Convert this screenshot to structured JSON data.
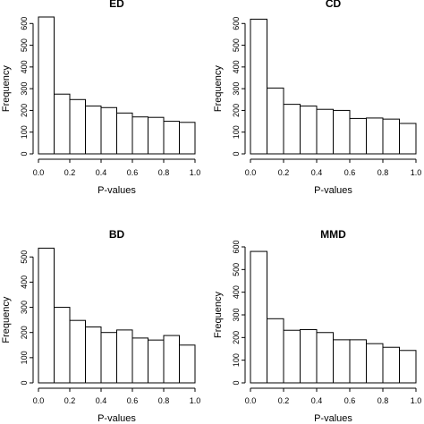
{
  "chart_data": [
    {
      "type": "bar",
      "title": "ED",
      "xlabel": "P-values",
      "ylabel": "Frequency",
      "bin_edges": [
        0.0,
        0.1,
        0.2,
        0.3,
        0.4,
        0.5,
        0.6,
        0.7,
        0.8,
        0.9,
        1.0
      ],
      "values": [
        630,
        275,
        250,
        220,
        213,
        188,
        170,
        168,
        150,
        145
      ],
      "xlim": [
        0,
        1
      ],
      "ylim": [
        0,
        630
      ],
      "xticks": [
        "0.0",
        "0.2",
        "0.4",
        "0.6",
        "0.8",
        "1.0"
      ],
      "yticks": [
        "0",
        "100",
        "200",
        "300",
        "400",
        "500",
        "600"
      ]
    },
    {
      "type": "bar",
      "title": "CD",
      "xlabel": "P-values",
      "ylabel": "Frequency",
      "bin_edges": [
        0.0,
        0.1,
        0.2,
        0.3,
        0.4,
        0.5,
        0.6,
        0.7,
        0.8,
        0.9,
        1.0
      ],
      "values": [
        620,
        303,
        228,
        220,
        205,
        200,
        163,
        165,
        160,
        140
      ],
      "xlim": [
        0,
        1
      ],
      "ylim": [
        0,
        630
      ],
      "xticks": [
        "0.0",
        "0.2",
        "0.4",
        "0.6",
        "0.8",
        "1.0"
      ],
      "yticks": [
        "0",
        "100",
        "200",
        "300",
        "400",
        "500",
        "600"
      ]
    },
    {
      "type": "bar",
      "title": "BD",
      "xlabel": "P-values",
      "ylabel": "Frequency",
      "bin_edges": [
        0.0,
        0.1,
        0.2,
        0.3,
        0.4,
        0.5,
        0.6,
        0.7,
        0.8,
        0.9,
        1.0
      ],
      "values": [
        535,
        300,
        248,
        222,
        200,
        210,
        178,
        170,
        188,
        150
      ],
      "xlim": [
        0,
        1
      ],
      "ylim": [
        0,
        540
      ],
      "xticks": [
        "0.0",
        "0.2",
        "0.4",
        "0.6",
        "0.8",
        "1.0"
      ],
      "yticks": [
        "0",
        "100",
        "200",
        "300",
        "400",
        "500"
      ]
    },
    {
      "type": "bar",
      "title": "MMD",
      "xlabel": "P-values",
      "ylabel": "Frequency",
      "bin_edges": [
        0.0,
        0.1,
        0.2,
        0.3,
        0.4,
        0.5,
        0.6,
        0.7,
        0.8,
        0.9,
        1.0
      ],
      "values": [
        580,
        283,
        232,
        235,
        222,
        190,
        190,
        173,
        157,
        143
      ],
      "xlim": [
        0,
        1
      ],
      "ylim": [
        0,
        600
      ],
      "xticks": [
        "0.0",
        "0.2",
        "0.4",
        "0.6",
        "0.8",
        "1.0"
      ],
      "yticks": [
        "0",
        "100",
        "200",
        "300",
        "400",
        "500",
        "600"
      ]
    }
  ]
}
